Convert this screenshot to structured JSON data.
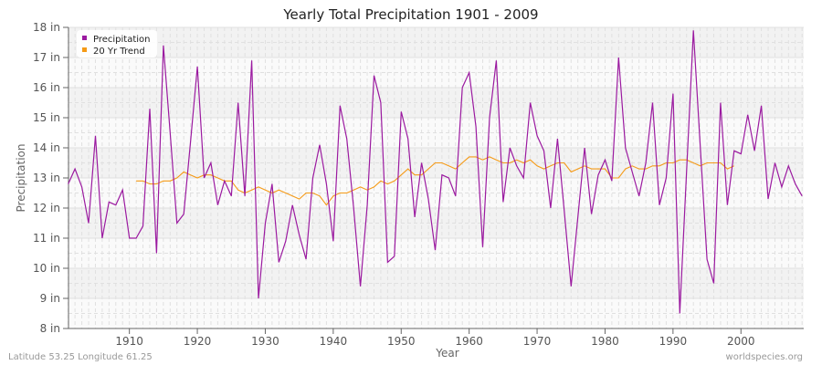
{
  "chart_data": {
    "type": "line",
    "title": "Yearly Total Precipitation 1901 - 2009",
    "xlabel": "Year",
    "ylabel": "Precipitation",
    "ylim": [
      8,
      18
    ],
    "xlim": [
      1901,
      2009
    ],
    "y_ticks": [
      "8 in",
      "9 in",
      "10 in",
      "11 in",
      "12 in",
      "13 in",
      "14 in",
      "15 in",
      "16 in",
      "17 in",
      "18 in"
    ],
    "x_ticks": [
      1910,
      1920,
      1930,
      1940,
      1950,
      1960,
      1970,
      1980,
      1990,
      2000
    ],
    "grid": true,
    "legend_position": "top-left",
    "series": [
      {
        "name": "Precipitation",
        "color": "#9b1aa0",
        "x_start": 1901,
        "values": [
          12.8,
          13.3,
          12.7,
          11.5,
          14.4,
          11.0,
          12.2,
          12.1,
          12.6,
          11.0,
          11.0,
          11.4,
          15.3,
          10.5,
          17.4,
          14.5,
          11.5,
          11.8,
          14.2,
          16.7,
          13.0,
          13.5,
          12.1,
          12.9,
          12.4,
          15.5,
          12.4,
          16.9,
          9.0,
          11.5,
          12.8,
          10.2,
          10.9,
          12.1,
          11.1,
          10.3,
          13.0,
          14.1,
          12.8,
          10.9,
          15.4,
          14.3,
          12.0,
          9.4,
          12.1,
          16.4,
          15.5,
          10.2,
          10.4,
          15.2,
          14.3,
          11.7,
          13.5,
          12.3,
          10.6,
          13.1,
          13.0,
          12.4,
          16.0,
          16.5,
          14.7,
          10.7,
          15.0,
          16.9,
          12.2,
          14.0,
          13.4,
          13.0,
          15.5,
          14.4,
          13.9,
          12.0,
          14.3,
          11.9,
          9.4,
          11.7,
          14.0,
          11.8,
          13.1,
          13.6,
          12.9,
          17.0,
          14.0,
          13.2,
          12.4,
          13.5,
          15.5,
          12.1,
          13.0,
          15.8,
          8.5,
          13.2,
          17.9,
          14.1,
          10.3,
          9.5,
          15.5,
          12.1,
          13.9,
          13.8,
          15.1,
          13.9,
          15.4,
          12.3,
          13.5,
          12.7,
          13.4,
          12.8,
          12.4
        ]
      },
      {
        "name": "20 Yr Trend",
        "color": "#f59a16",
        "x_start": 1911,
        "values": [
          12.9,
          12.9,
          12.8,
          12.8,
          12.9,
          12.9,
          13.0,
          13.2,
          13.1,
          13.0,
          13.1,
          13.1,
          13.0,
          12.9,
          12.9,
          12.6,
          12.5,
          12.6,
          12.7,
          12.6,
          12.5,
          12.6,
          12.5,
          12.4,
          12.3,
          12.5,
          12.5,
          12.4,
          12.1,
          12.4,
          12.5,
          12.5,
          12.6,
          12.7,
          12.6,
          12.7,
          12.9,
          12.8,
          12.9,
          13.1,
          13.3,
          13.1,
          13.1,
          13.3,
          13.5,
          13.5,
          13.4,
          13.3,
          13.5,
          13.7,
          13.7,
          13.6,
          13.7,
          13.6,
          13.5,
          13.5,
          13.6,
          13.5,
          13.6,
          13.4,
          13.3,
          13.4,
          13.5,
          13.5,
          13.2,
          13.3,
          13.4,
          13.3,
          13.3,
          13.3,
          13.0,
          13.0,
          13.3,
          13.4,
          13.3,
          13.3,
          13.4,
          13.4,
          13.5,
          13.5,
          13.6,
          13.6,
          13.5,
          13.4,
          13.5,
          13.5,
          13.5,
          13.3,
          13.4
        ]
      }
    ]
  },
  "footer": {
    "left": "Latitude 53.25 Longitude 61.25",
    "right": "worldspecies.org"
  },
  "colors": {
    "plot_band_light": "#fafafa",
    "plot_band_dark": "#f2f2f2",
    "grid": "#e0e0e0",
    "axis": "#666666"
  }
}
